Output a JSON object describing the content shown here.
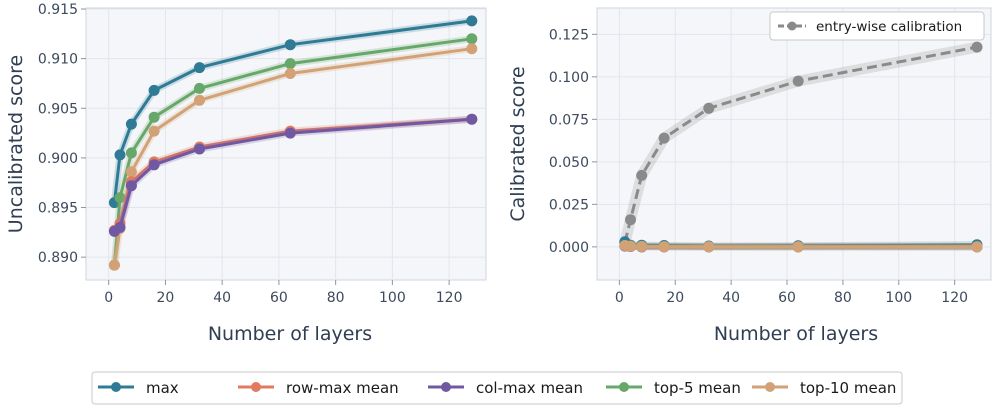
{
  "chart_data": [
    {
      "type": "line",
      "title": "",
      "xlabel": "Number of layers",
      "ylabel": "Uncalibrated score",
      "xlim": [
        -8,
        133
      ],
      "ylim": [
        0.8877,
        0.9151
      ],
      "x": [
        2,
        4,
        8,
        16,
        32,
        64,
        128
      ],
      "xticks": [
        0,
        20,
        40,
        60,
        80,
        100,
        120
      ],
      "xtick_labels": [
        "0",
        "20",
        "40",
        "60",
        "80",
        "100",
        "120"
      ],
      "yticks": [
        0.89,
        0.895,
        0.9,
        0.905,
        0.91,
        0.915
      ],
      "ytick_labels": [
        "0.890",
        "0.895",
        "0.900",
        "0.905",
        "0.910",
        "0.915"
      ],
      "grid": true,
      "series": [
        {
          "name": "max",
          "color": "#2f7a94",
          "values": [
            0.8955,
            0.9003,
            0.9034,
            0.9068,
            0.9091,
            0.9114,
            0.9138
          ]
        },
        {
          "name": "row-max mean",
          "color": "#e07b60",
          "values": [
            0.8927,
            0.8934,
            0.8976,
            0.8996,
            0.9011,
            0.9027,
            0.9039
          ]
        },
        {
          "name": "col-max mean",
          "color": "#7058a3",
          "values": [
            0.8926,
            0.893,
            0.8972,
            0.8993,
            0.9009,
            0.9025,
            0.9039
          ]
        },
        {
          "name": "top-5 mean",
          "color": "#67a86a",
          "values": [
            0.8892,
            0.896,
            0.9005,
            0.9041,
            0.907,
            0.9095,
            0.912
          ]
        },
        {
          "name": "top-10 mean",
          "color": "#d2a276",
          "values": [
            0.8892,
            0.8929,
            0.8986,
            0.9027,
            0.9058,
            0.9085,
            0.911
          ]
        }
      ]
    },
    {
      "type": "line",
      "title": "",
      "xlabel": "Number of layers",
      "ylabel": "Calibrated score",
      "xlim": [
        -8,
        133
      ],
      "ylim": [
        -0.0195,
        0.1405
      ],
      "x": [
        2,
        4,
        8,
        16,
        32,
        64,
        128
      ],
      "xticks": [
        0,
        20,
        40,
        60,
        80,
        100,
        120
      ],
      "xtick_labels": [
        "0",
        "20",
        "40",
        "60",
        "80",
        "100",
        "120"
      ],
      "yticks": [
        0.0,
        0.025,
        0.05,
        0.075,
        0.1,
        0.125
      ],
      "ytick_labels": [
        "0.000",
        "0.025",
        "0.050",
        "0.075",
        "0.100",
        "0.125"
      ],
      "grid": true,
      "legend_position": "top-right",
      "series": [
        {
          "name": "entry-wise calibration",
          "color": "#8a8a8a",
          "dashed": true,
          "values": [
            0.0025,
            0.016,
            0.042,
            0.064,
            0.0815,
            0.0975,
            0.1175
          ]
        },
        {
          "name": "max",
          "color": "#2f7a94",
          "values": [
            0.003,
            0.001,
            0.001,
            0.0008,
            0.0005,
            0.0006,
            0.0012
          ]
        },
        {
          "name": "row-max mean",
          "color": "#e07b60",
          "values": [
            0.0005,
            0.0002,
            0.0,
            0.0,
            0.0,
            0.0,
            0.0
          ]
        },
        {
          "name": "col-max mean",
          "color": "#7058a3",
          "values": [
            0.0005,
            0.0002,
            0.0,
            0.0,
            0.0,
            0.0,
            0.0
          ]
        },
        {
          "name": "top-5 mean",
          "color": "#67a86a",
          "values": [
            0.0008,
            0.0005,
            0.0003,
            0.0002,
            0.0001,
            0.0001,
            0.0001
          ]
        },
        {
          "name": "top-10 mean",
          "color": "#d2a276",
          "values": [
            0.0008,
            0.0004,
            0.0002,
            0.0001,
            0.0001,
            0.0,
            0.0
          ]
        }
      ]
    }
  ],
  "legend": {
    "items": [
      {
        "label": "max",
        "color": "#2f7a94"
      },
      {
        "label": "row-max mean",
        "color": "#e07b60"
      },
      {
        "label": "col-max mean",
        "color": "#7058a3"
      },
      {
        "label": "top-5 mean",
        "color": "#67a86a"
      },
      {
        "label": "top-10 mean",
        "color": "#d2a276"
      }
    ]
  }
}
